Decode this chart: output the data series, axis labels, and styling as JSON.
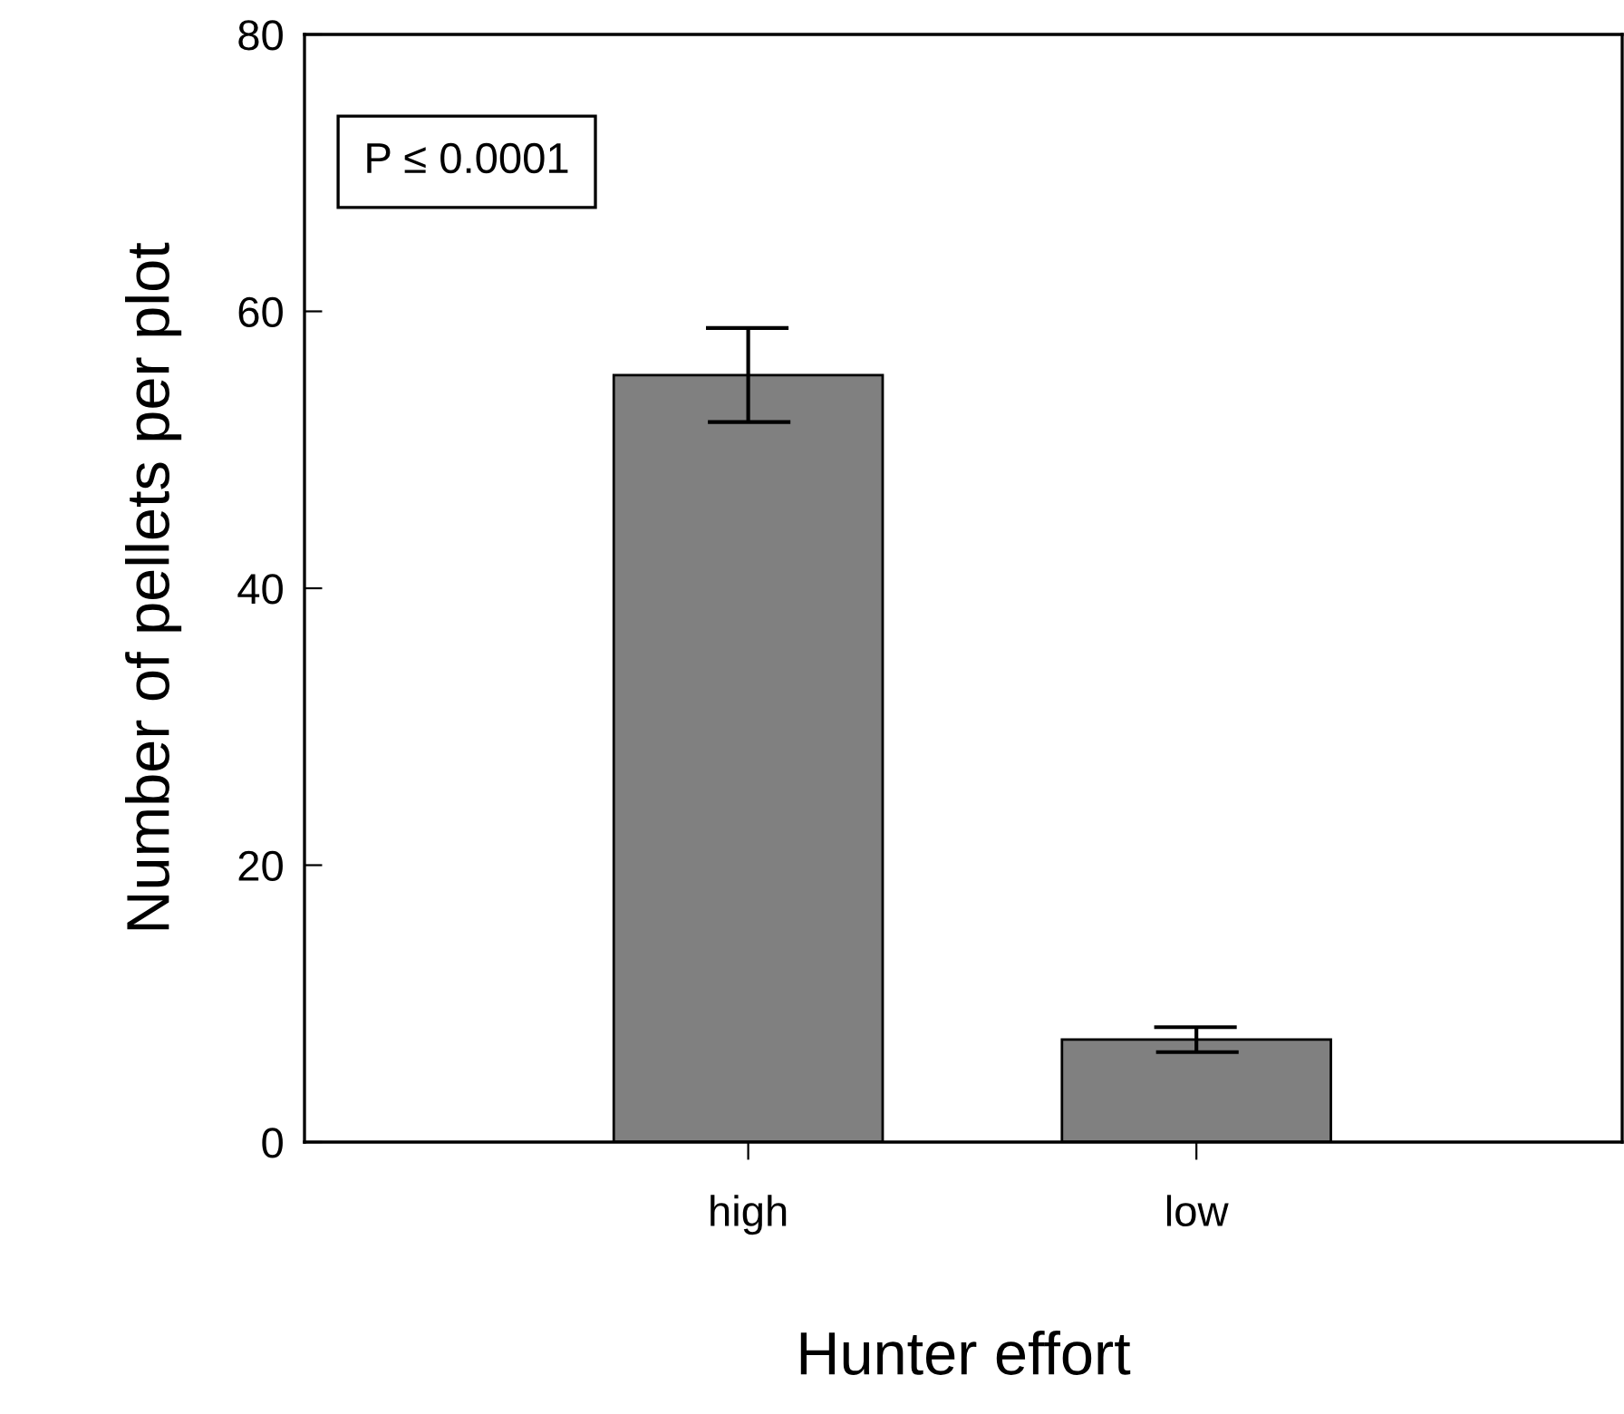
{
  "chart_data": {
    "type": "bar",
    "xlabel": "Hunter effort",
    "ylabel": "Number of pellets per plot",
    "categories": [
      "high",
      "low"
    ],
    "values": [
      55.4,
      7.4
    ],
    "errors": [
      3.4,
      0.9
    ],
    "color": "#808080",
    "ylim": [
      0,
      80
    ],
    "yticks": [
      0,
      20,
      40,
      60,
      80
    ],
    "grid": false,
    "annotations": [
      "P ≤ 0.0001"
    ]
  }
}
